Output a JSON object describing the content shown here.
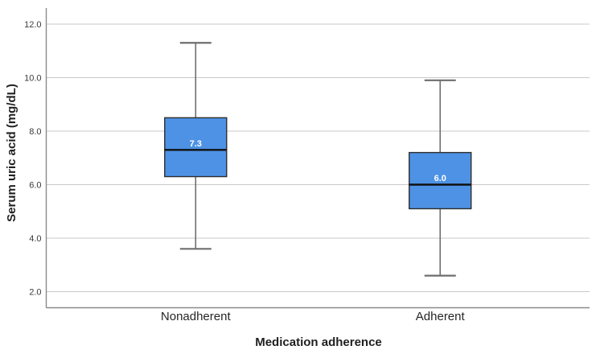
{
  "chart_data": {
    "type": "boxplot",
    "title": "",
    "xlabel": "Medication adherence",
    "ylabel": "Serum uric acid (mg/dL)",
    "ylim": [
      1.4,
      12.6
    ],
    "grid": "horizontal",
    "legend": "none",
    "yticks": [
      {
        "value": 2,
        "label": "2.0"
      },
      {
        "value": 4,
        "label": "4.0"
      },
      {
        "value": 6,
        "label": "6.0"
      },
      {
        "value": 8,
        "label": "8.0"
      },
      {
        "value": 10,
        "label": "10.0"
      },
      {
        "value": 12,
        "label": "12.0"
      }
    ],
    "categories": [
      "Nonadherent",
      "Adherent"
    ],
    "boxes": [
      {
        "category": "Nonadherent",
        "whisker_low": 3.6,
        "q1": 6.3,
        "median": 7.3,
        "q3": 8.5,
        "whisker_high": 11.3,
        "median_label": "7.3"
      },
      {
        "category": "Adherent",
        "whisker_low": 2.6,
        "q1": 5.1,
        "median": 6.0,
        "q3": 7.2,
        "whisker_high": 9.9,
        "median_label": "6.0"
      }
    ],
    "colors": {
      "background": "#ffffff",
      "box_fill": "#4d92e5",
      "box_border": "#2e2e2e",
      "median_line": "#111111",
      "median_label": "#ffffff",
      "whisker": "#6e6e6e",
      "gridline": "#c9c9c9",
      "axis_line": "#8a8a8a",
      "tick_label": "#3a3a3a",
      "category_label": "#262626",
      "axis_title": "#1f1f1f"
    }
  }
}
